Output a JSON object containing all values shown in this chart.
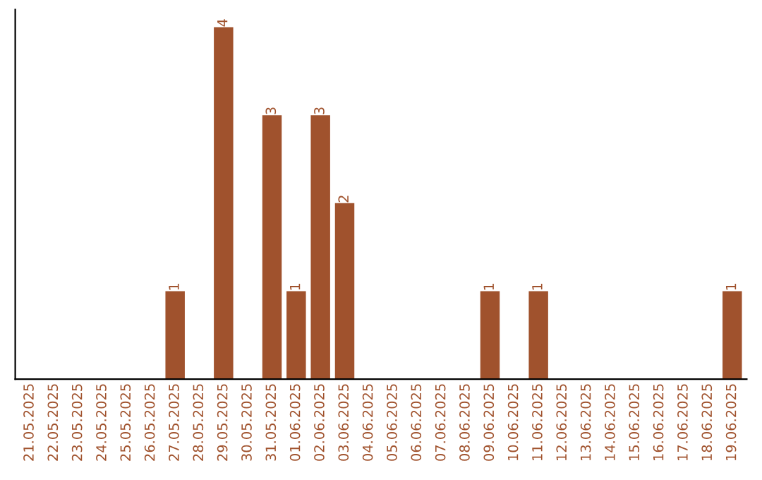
{
  "chart_data": {
    "type": "bar",
    "categories": [
      "21.05.2025",
      "22.05.2025",
      "23.05.2025",
      "24.05.2025",
      "25.05.2025",
      "26.05.2025",
      "27.05.2025",
      "28.05.2025",
      "29.05.2025",
      "30.05.2025",
      "31.05.2025",
      "01.06.2025",
      "02.06.2025",
      "03.06.2025",
      "04.06.2025",
      "05.06.2025",
      "06.06.2025",
      "07.06.2025",
      "08.06.2025",
      "09.06.2025",
      "10.06.2025",
      "11.06.2025",
      "12.06.2025",
      "13.06.2025",
      "14.06.2025",
      "15.06.2025",
      "16.06.2025",
      "17.06.2025",
      "18.06.2025",
      "19.06.2025"
    ],
    "values": [
      0,
      0,
      0,
      0,
      0,
      0,
      1,
      0,
      4,
      0,
      3,
      1,
      3,
      2,
      0,
      0,
      0,
      0,
      0,
      1,
      0,
      1,
      0,
      0,
      0,
      0,
      0,
      0,
      0,
      1
    ],
    "value_labels": [
      null,
      null,
      null,
      null,
      null,
      null,
      "1",
      null,
      "4",
      null,
      "3",
      "1",
      "3",
      "2",
      null,
      null,
      null,
      null,
      null,
      "1",
      null,
      "1",
      null,
      null,
      null,
      null,
      null,
      null,
      null,
      "1"
    ],
    "color": "#a0522d",
    "grid": false,
    "legend": false,
    "tick_labels": "x"
  }
}
